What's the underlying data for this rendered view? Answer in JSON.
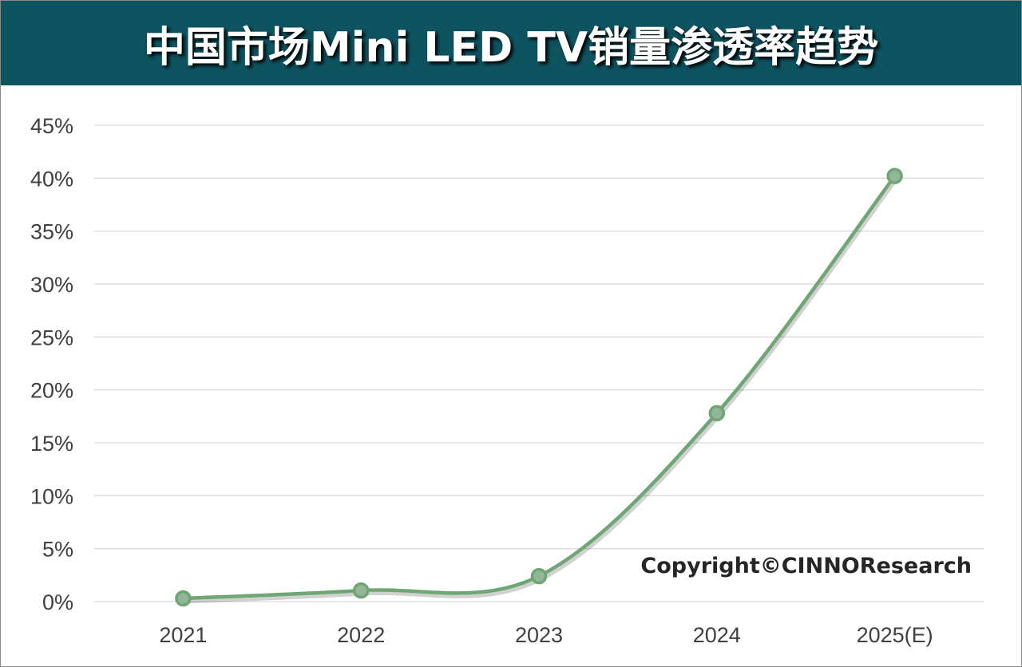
{
  "title": "中国市场Mini LED TV销量渗透率趋势",
  "watermark": "Copyright©CINNOResearch",
  "colors": {
    "header": "#0e5360",
    "line": "#6ea674",
    "marker_fill": "#93b59a",
    "grid": "#d9d9d9"
  },
  "chart_data": {
    "type": "line",
    "title": "中国市场Mini LED TV销量渗透率趋势",
    "categories": [
      "2021",
      "2022",
      "2023",
      "2024",
      "2025(E)"
    ],
    "series": [
      {
        "values": [
          0.3,
          1.05,
          2.4,
          17.8,
          40.2
        ]
      }
    ],
    "unit": "%",
    "ylim": [
      0,
      45
    ],
    "yticks": [
      "0%",
      "5%",
      "10%",
      "15%",
      "20%",
      "25%",
      "30%",
      "35%",
      "40%",
      "45%"
    ],
    "smooth": true,
    "markers": true,
    "grid": true,
    "legend": "none"
  }
}
